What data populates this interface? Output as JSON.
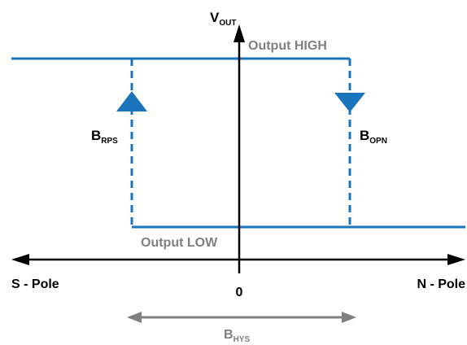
{
  "diagram": {
    "y_axis_label": {
      "main": "V",
      "sub": "OUT"
    },
    "output_high_label": "Output HIGH",
    "output_low_label": "Output LOW",
    "rps_label": {
      "main": "B",
      "sub": "RPS"
    },
    "opn_label": {
      "main": "B",
      "sub": "OPN"
    },
    "hys_label": {
      "main": "B",
      "sub": "HYS"
    },
    "left_pole_label": "S - Pole",
    "right_pole_label": "N - Pole",
    "origin_label": "0",
    "colors": {
      "signal": "#1a75bc",
      "axis": "#000000",
      "hysteresis_arrow": "#808080",
      "level_text": "#808080",
      "text": "#000000"
    }
  }
}
